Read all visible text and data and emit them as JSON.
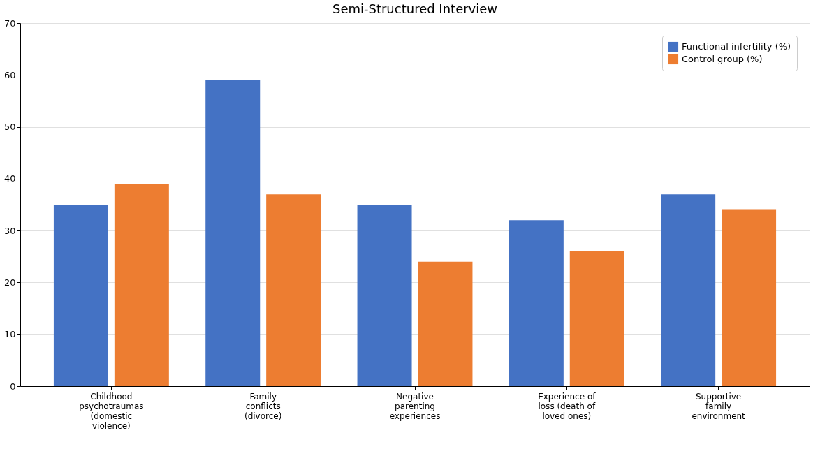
{
  "chart_data": {
    "type": "bar",
    "title": "Semi-Structured Interview",
    "categories": [
      "Childhood psychotraumas (domestic violence)",
      "Family conflicts (divorce)",
      "Negative parenting experiences",
      "Experience of loss (death of loved ones)",
      "Supportive family environment"
    ],
    "series": [
      {
        "name": "Functional infertility (%)",
        "color": "#4472c4",
        "values": [
          35,
          59,
          35,
          32,
          37
        ]
      },
      {
        "name": "Control group (%)",
        "color": "#ed7d31",
        "values": [
          39,
          37,
          24,
          26,
          34
        ]
      }
    ],
    "ylim": [
      0,
      70
    ],
    "yticks": [
      0,
      10,
      20,
      30,
      40,
      50,
      60,
      70
    ],
    "grid": "y",
    "legend": "top right"
  }
}
